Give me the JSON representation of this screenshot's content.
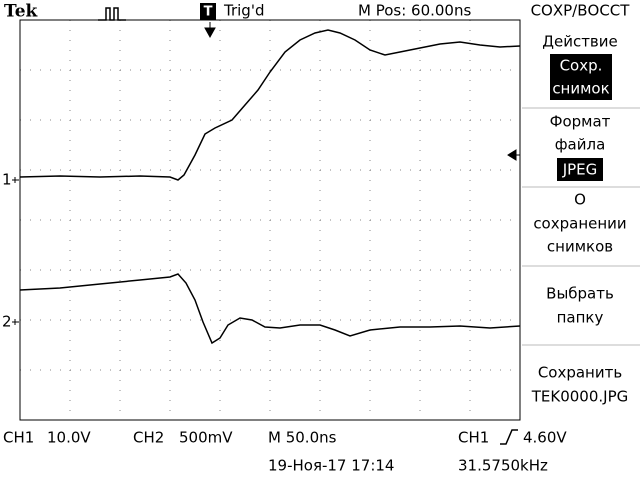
{
  "header": {
    "brand": "Tek",
    "trigger_status": "Trig'd",
    "position": "M Pos: 60.00ns",
    "menu_title": "СОХР/ВОССТ"
  },
  "channel_markers": [
    "1",
    "2"
  ],
  "menu": [
    {
      "label": [
        "Действие"
      ],
      "value": [
        "Сохр.",
        "снимок"
      ]
    },
    {
      "label": [
        "Формат",
        "файла"
      ],
      "value": [
        "JPEG"
      ]
    },
    {
      "label": [
        "О",
        "сохранении",
        "снимков"
      ]
    },
    {
      "label": [
        "Выбрать",
        "папку"
      ]
    },
    {
      "label": [
        "Сохранить",
        "TEK0000.JPG"
      ]
    }
  ],
  "footer": {
    "ch1": "CH1",
    "ch1_scale": "10.0V",
    "ch2": "CH2",
    "ch2_scale": "500mV",
    "timebase": "M 50.0ns",
    "trigger_source": "CH1",
    "trigger_level": "4.60V",
    "date": "19-Ноя-17 17:14",
    "frequency": "31.5750kHz"
  }
}
